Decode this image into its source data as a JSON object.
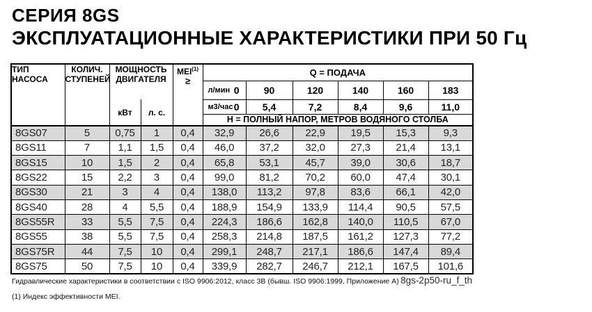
{
  "titles": {
    "line1": "СЕРИЯ 8GS",
    "line2": "ЭКСПЛУАТАЦИОННЫЕ ХАРАКТЕРИСТИКИ ПРИ 50 Гц"
  },
  "table": {
    "col_pump_type": "ТИП НАСОСА",
    "col_stages_1": "КОЛИЧ.",
    "col_stages_2": "СТУПЕНЕЙ",
    "col_power_1": "МОЩНОСТЬ",
    "col_power_2": "ДВИГАТЕЛЯ",
    "col_mei_label": "MEI",
    "col_mei_sup": "(1)",
    "col_mei_symbol": "≥",
    "unit_kw": "кВт",
    "unit_hp": "л. с.",
    "q_header": "Q  =  ПОДАЧА",
    "h_header": "Н  =  ПОЛНЫЙ НАПОР, МЕТРОВ ВОДЯНОГО СТОЛБА",
    "flow_rows": [
      {
        "label": "л/мин",
        "zero": "0",
        "values": [
          "90",
          "120",
          "140",
          "160",
          "183"
        ]
      },
      {
        "label": "м3/час",
        "zero": "0",
        "values": [
          "5,4",
          "7,2",
          "8,4",
          "9,6",
          "11,0"
        ]
      }
    ],
    "rows": [
      {
        "model": "8GS07",
        "stages": "5",
        "kw": "0,75",
        "hp": "1",
        "mei": "0,4",
        "heads": [
          "32,9",
          "26,6",
          "22,9",
          "19,5",
          "15,3",
          "9,3"
        ]
      },
      {
        "model": "8GS11",
        "stages": "7",
        "kw": "1,1",
        "hp": "1,5",
        "mei": "0,4",
        "heads": [
          "46,0",
          "37,2",
          "32,0",
          "27,3",
          "21,4",
          "13,1"
        ]
      },
      {
        "model": "8GS15",
        "stages": "10",
        "kw": "1,5",
        "hp": "2",
        "mei": "0,4",
        "heads": [
          "65,8",
          "53,1",
          "45,7",
          "39,0",
          "30,6",
          "18,7"
        ]
      },
      {
        "model": "8GS22",
        "stages": "15",
        "kw": "2,2",
        "hp": "3",
        "mei": "0,4",
        "heads": [
          "99,0",
          "81,2",
          "70,2",
          "60,0",
          "47,4",
          "30,1"
        ]
      },
      {
        "model": "8GS30",
        "stages": "21",
        "kw": "3",
        "hp": "4",
        "mei": "0,4",
        "heads": [
          "138,0",
          "113,2",
          "97,8",
          "83,6",
          "66,1",
          "42,0"
        ]
      },
      {
        "model": "8GS40",
        "stages": "28",
        "kw": "4",
        "hp": "5,5",
        "mei": "0,4",
        "heads": [
          "188,9",
          "154,9",
          "133,9",
          "114,4",
          "90,5",
          "57,5"
        ]
      },
      {
        "model": "8GS55R",
        "stages": "33",
        "kw": "5,5",
        "hp": "7,5",
        "mei": "0,4",
        "heads": [
          "224,3",
          "186,6",
          "162,8",
          "140,0",
          "110,5",
          "67,0"
        ]
      },
      {
        "model": "8GS55",
        "stages": "38",
        "kw": "5,5",
        "hp": "7,5",
        "mei": "0,4",
        "heads": [
          "258,3",
          "214,8",
          "187,5",
          "161,2",
          "127,3",
          "77,2"
        ]
      },
      {
        "model": "8GS75R",
        "stages": "44",
        "kw": "7,5",
        "hp": "10",
        "mei": "0,4",
        "heads": [
          "299,1",
          "248,7",
          "217,1",
          "186,6",
          "147,4",
          "89,4"
        ]
      },
      {
        "model": "8GS75",
        "stages": "50",
        "kw": "7,5",
        "hp": "10",
        "mei": "0,4",
        "heads": [
          "339,9",
          "282,7",
          "246,7",
          "212,1",
          "167,5",
          "101,6"
        ]
      }
    ]
  },
  "footer": {
    "note1": "Гидравлические характеристики в соответствии с ISO 9906:2012, класс 3В (бывш. ISO 9906:1999, Приложение А)",
    "note2": "(1) Индекс эффективности MEI.",
    "doc_code": "8gs-2p50-ru_f_th"
  },
  "colors": {
    "row_stripe": "#d9d9d9",
    "border": "#000000",
    "text": "#232323"
  }
}
